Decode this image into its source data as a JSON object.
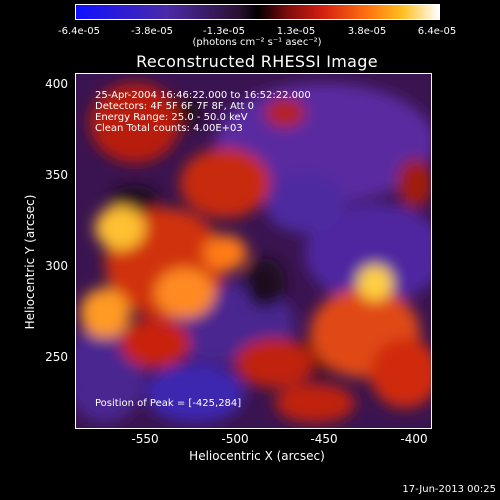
{
  "colorbar": {
    "ticks": [
      "-6.4e-05",
      "-3.8e-05",
      "-1.3e-05",
      "1.3e-05",
      "3.8e-05",
      "6.4e-05"
    ],
    "units": "(photons cm⁻² s⁻¹ asec⁻²)",
    "range": [
      -6.4e-05,
      6.4e-05
    ]
  },
  "chart_data": {
    "type": "heatmap",
    "title": "Reconstructed RHESSI Image",
    "xlabel": "Heliocentric X (arcsec)",
    "ylabel": "Heliocentric Y (arcsec)",
    "xlim": [
      -590,
      -395
    ],
    "ylim": [
      208,
      403
    ],
    "xticks": [
      "-550",
      "-500",
      "-450",
      "-400"
    ],
    "yticks": [
      "250",
      "300",
      "350",
      "400"
    ],
    "peak": [
      -425,
      284
    ],
    "info": {
      "time": "25-Apr-2004 16:46:22.000 to 16:52:22.000",
      "detectors": "Detectors: 4F 5F 6F 7F 8F, Att 0",
      "energy": "Energy Range: 25.0 - 50.0 keV",
      "clean": "Clean     Total counts: 4.00E+03",
      "peak": "Position of Peak = [-425,284]"
    }
  },
  "footer": "17-Jun-2013 00:25"
}
